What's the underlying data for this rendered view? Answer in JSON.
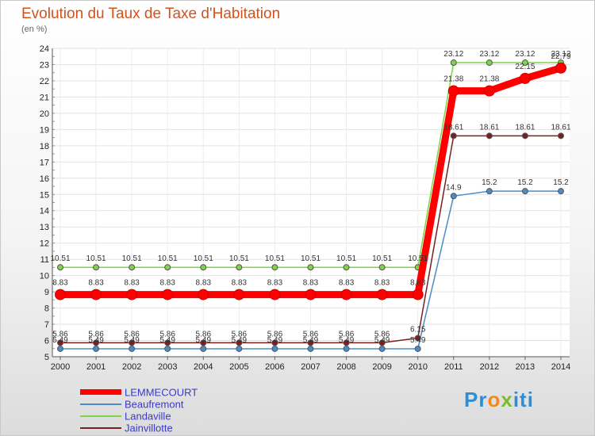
{
  "chart_data": {
    "type": "line",
    "title": "Evolution du Taux de Taxe d'Habitation",
    "unit_label": "(en %)",
    "x": [
      "2000",
      "2001",
      "2002",
      "2003",
      "2004",
      "2005",
      "2006",
      "2007",
      "2008",
      "2009",
      "2010",
      "2011",
      "2012",
      "2013",
      "2014"
    ],
    "ylim": [
      5,
      24
    ],
    "yticks": [
      5,
      6,
      7,
      8,
      9,
      10,
      11,
      12,
      13,
      14,
      15,
      16,
      17,
      18,
      19,
      20,
      21,
      22,
      23,
      24
    ],
    "series": [
      {
        "name": "LEMMECOURT",
        "color": "#ff0000",
        "emphasis": true,
        "values": [
          8.83,
          8.83,
          8.83,
          8.83,
          8.83,
          8.83,
          8.83,
          8.83,
          8.83,
          8.83,
          8.83,
          21.38,
          21.38,
          22.15,
          22.79
        ],
        "labels": [
          "8.83",
          "8.83",
          "8.83",
          "8.83",
          "8.83",
          "8.83",
          "8.83",
          "8.83",
          "8.83",
          "8.83",
          "8.83",
          "21.38",
          "21.38",
          "22.15",
          "22.79"
        ]
      },
      {
        "name": "Beaufremont",
        "color": "#4a8cc8",
        "values": [
          5.49,
          5.49,
          5.49,
          5.49,
          5.49,
          5.49,
          5.49,
          5.49,
          5.49,
          5.49,
          5.49,
          14.9,
          15.2,
          15.2,
          15.2
        ],
        "labels": [
          "5.49",
          "5.49",
          "5.49",
          "5.49",
          "5.49",
          "5.49",
          "5.49",
          "5.49",
          "5.49",
          "5.49",
          "5.49",
          "14.9",
          "15.2",
          "15.2",
          "15.2"
        ]
      },
      {
        "name": "Landaville",
        "color": "#7dd444",
        "values": [
          10.51,
          10.51,
          10.51,
          10.51,
          10.51,
          10.51,
          10.51,
          10.51,
          10.51,
          10.51,
          10.51,
          23.12,
          23.12,
          23.12,
          23.12
        ],
        "labels": [
          "10.51",
          "10.51",
          "10.51",
          "10.51",
          "10.51",
          "10.51",
          "10.51",
          "10.51",
          "10.51",
          "10.51",
          "10.51",
          "23.12",
          "23.12",
          "23.12",
          "23.12"
        ]
      },
      {
        "name": "Jainvillotte",
        "color": "#7a1f1f",
        "values": [
          5.86,
          5.86,
          5.86,
          5.86,
          5.86,
          5.86,
          5.86,
          5.86,
          5.86,
          5.86,
          6.15,
          18.61,
          18.61,
          18.61,
          18.61
        ],
        "labels": [
          "5.86",
          "5.86",
          "5.86",
          "5.86",
          "5.86",
          "5.86",
          "5.86",
          "5.86",
          "5.86",
          "5.86",
          "6.15",
          "18.61",
          "18.61",
          "18.61",
          "18.61"
        ]
      }
    ]
  },
  "logo": {
    "p1": "Pr",
    "p2": "o",
    "p3": "x",
    "p4": "iti"
  }
}
